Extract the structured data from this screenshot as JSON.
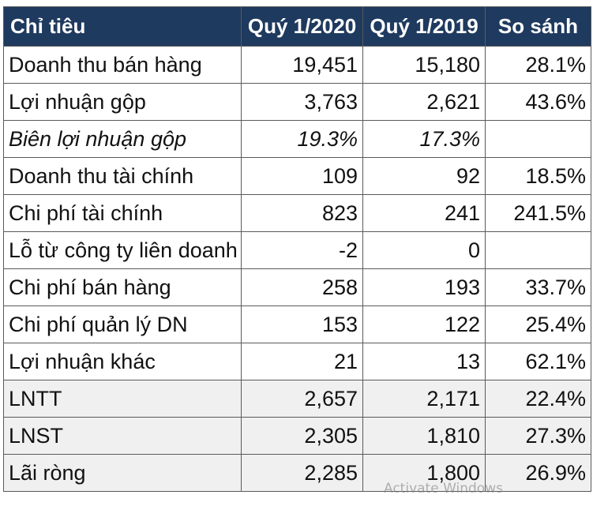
{
  "colors": {
    "header_bg": "#1f3a5f",
    "header_text": "#ffffff",
    "shaded_row_bg": "#f0f0f0"
  },
  "watermark": "Activate Windows",
  "chart_data": {
    "type": "table",
    "columns": [
      "Chỉ tiêu",
      "Quý 1/2020",
      "Quý 1/2019",
      "So sánh"
    ],
    "rows": [
      {
        "label": "Doanh thu bán hàng",
        "q1_2020": "19,451",
        "q1_2019": "15,180",
        "change": "28.1%",
        "style": "normal"
      },
      {
        "label": "Lợi nhuận gộp",
        "q1_2020": "3,763",
        "q1_2019": "2,621",
        "change": "43.6%",
        "style": "normal"
      },
      {
        "label": "Biên lợi nhuận gộp",
        "q1_2020": "19.3%",
        "q1_2019": "17.3%",
        "change": "",
        "style": "italic"
      },
      {
        "label": "Doanh thu tài chính",
        "q1_2020": "109",
        "q1_2019": "92",
        "change": "18.5%",
        "style": "normal"
      },
      {
        "label": "Chi phí tài chính",
        "q1_2020": "823",
        "q1_2019": "241",
        "change": "241.5%",
        "style": "normal"
      },
      {
        "label": "Lỗ từ công ty liên doanh",
        "q1_2020": "-2",
        "q1_2019": "0",
        "change": "",
        "style": "normal"
      },
      {
        "label": "Chi phí bán hàng",
        "q1_2020": "258",
        "q1_2019": "193",
        "change": "33.7%",
        "style": "normal"
      },
      {
        "label": "Chi phí quản lý DN",
        "q1_2020": "153",
        "q1_2019": "122",
        "change": "25.4%",
        "style": "normal"
      },
      {
        "label": "Lợi nhuận khác",
        "q1_2020": "21",
        "q1_2019": "13",
        "change": "62.1%",
        "style": "normal"
      },
      {
        "label": "LNTT",
        "q1_2020": "2,657",
        "q1_2019": "2,171",
        "change": "22.4%",
        "style": "shaded"
      },
      {
        "label": "LNST",
        "q1_2020": "2,305",
        "q1_2019": "1,810",
        "change": "27.3%",
        "style": "shaded"
      },
      {
        "label": "Lãi ròng",
        "q1_2020": "2,285",
        "q1_2019": "1,800",
        "change": "26.9%",
        "style": "shaded"
      }
    ]
  }
}
